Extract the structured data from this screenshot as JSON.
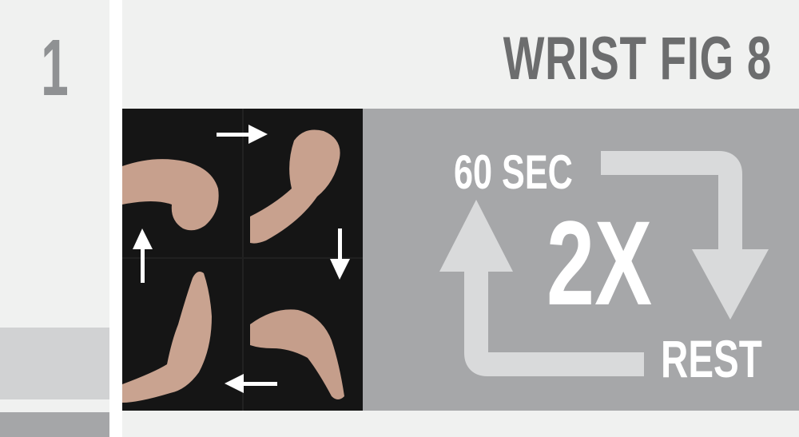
{
  "step": {
    "number": "1"
  },
  "exercise": {
    "title": "WRIST FIG 8"
  },
  "photo": {
    "description_icon": "hand-wrist-sequence-icon",
    "arrows": [
      "arrow-right-icon",
      "arrow-down-icon",
      "arrow-left-icon",
      "arrow-up-icon"
    ]
  },
  "routine": {
    "duration": "60 SEC",
    "repetitions": "2X",
    "rest": "REST"
  },
  "colors": {
    "background": "#f0f1f0",
    "title": "#6c6d6e",
    "number": "#8f9193",
    "panel": "#a6a7a9",
    "cycle_arrow": "#d9dadb",
    "photo_bg": "#161616"
  }
}
